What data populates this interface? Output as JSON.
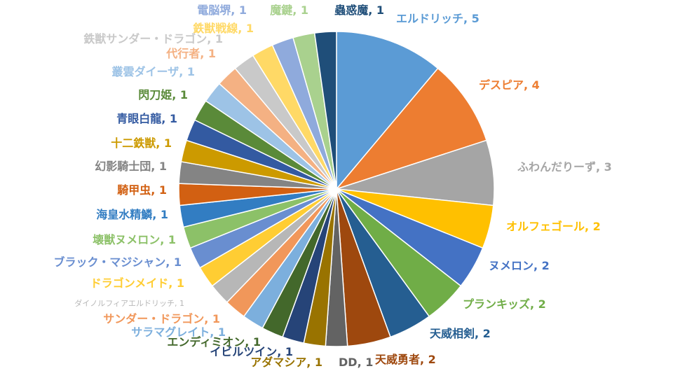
{
  "chart_data": {
    "type": "pie",
    "title": "",
    "legend": "none",
    "slices": [
      {
        "label": "エルドリッチ, 5",
        "name": "エルドリッチ",
        "value": 5,
        "color": "#5b9bd5"
      },
      {
        "label": "デスピア, 4",
        "name": "デスピア",
        "value": 4,
        "color": "#ed7d31"
      },
      {
        "label": "ふわんだりーず, 3",
        "name": "ふわんだりーず",
        "value": 3,
        "color": "#a5a5a5"
      },
      {
        "label": "オルフェゴール, 2",
        "name": "オルフェゴール",
        "value": 2,
        "color": "#ffc000"
      },
      {
        "label": "ヌメロン, 2",
        "name": "ヌメロン",
        "value": 2,
        "color": "#4472c4"
      },
      {
        "label": "プランキッズ, 2",
        "name": "プランキッズ",
        "value": 2,
        "color": "#70ad47"
      },
      {
        "label": "天威相剣, 2",
        "name": "天威相剣",
        "value": 2,
        "color": "#255e91"
      },
      {
        "label": "天威勇者, 2",
        "name": "天威勇者",
        "value": 2,
        "color": "#9e480e"
      },
      {
        "label": "DD, 1",
        "name": "DD",
        "value": 1,
        "color": "#636363"
      },
      {
        "label": "アダマシア, 1",
        "name": "アダマシア",
        "value": 1,
        "color": "#997300"
      },
      {
        "label": "イビルツイン, 1",
        "name": "イビルツイン",
        "value": 1,
        "color": "#264478"
      },
      {
        "label": "エンディミオン, 1",
        "name": "エンディミオン",
        "value": 1,
        "color": "#43682b"
      },
      {
        "label": "サラマグレイト, 1",
        "name": "サラマグレイト",
        "value": 1,
        "color": "#7cafdd"
      },
      {
        "label": "サンダー・ドラゴン, 1",
        "name": "サンダー・ドラゴン",
        "value": 1,
        "color": "#f1975a"
      },
      {
        "label": "ダイノルフィアエルドリッチ, 1",
        "name": "ダイノルフィアエルドリッチ",
        "value": 1,
        "color": "#b7b7b7"
      },
      {
        "label": "ドラゴンメイド, 1",
        "name": "ドラゴンメイド",
        "value": 1,
        "color": "#ffcd33"
      },
      {
        "label": "ブラック・マジシャン, 1",
        "name": "ブラック・マジシャン",
        "value": 1,
        "color": "#698ed0"
      },
      {
        "label": "壊獣ヌメロン, 1",
        "name": "壊獣ヌメロン",
        "value": 1,
        "color": "#8cc168"
      },
      {
        "label": "海皇水精鱗, 1",
        "name": "海皇水精鱗",
        "value": 1,
        "color": "#327dc2"
      },
      {
        "label": "騎甲虫, 1",
        "name": "騎甲虫",
        "value": 1,
        "color": "#d26012"
      },
      {
        "label": "幻影騎士団, 1",
        "name": "幻影騎士団",
        "value": 1,
        "color": "#848484"
      },
      {
        "label": "十二鉄獣, 1",
        "name": "十二鉄獣",
        "value": 1,
        "color": "#cc9a00"
      },
      {
        "label": "青眼白龍, 1",
        "name": "青眼白龍",
        "value": 1,
        "color": "#335aa1"
      },
      {
        "label": "閃刀姫, 1",
        "name": "閃刀姫",
        "value": 1,
        "color": "#5a8a39"
      },
      {
        "label": "叢雲ダイーザ, 1",
        "name": "叢雲ダイーザ",
        "value": 1,
        "color": "#9dc3e6"
      },
      {
        "label": "代行者, 1",
        "name": "代行者",
        "value": 1,
        "color": "#f4b183"
      },
      {
        "label": "鉄獣サンダー・ドラゴン, 1",
        "name": "鉄獣サンダー・ドラゴン",
        "value": 1,
        "color": "#c9c9c9"
      },
      {
        "label": "鉄獣戦線, 1",
        "name": "鉄獣戦線",
        "value": 1,
        "color": "#ffd966"
      },
      {
        "label": "電脳堺, 1",
        "name": "電脳堺",
        "value": 1,
        "color": "#8faadc"
      },
      {
        "label": "魔鍵, 1",
        "name": "魔鍵",
        "value": 1,
        "color": "#a9d18e"
      },
      {
        "label": "蟲惑魔, 1",
        "name": "蟲惑魔",
        "value": 1,
        "color": "#1f4e79"
      }
    ]
  }
}
